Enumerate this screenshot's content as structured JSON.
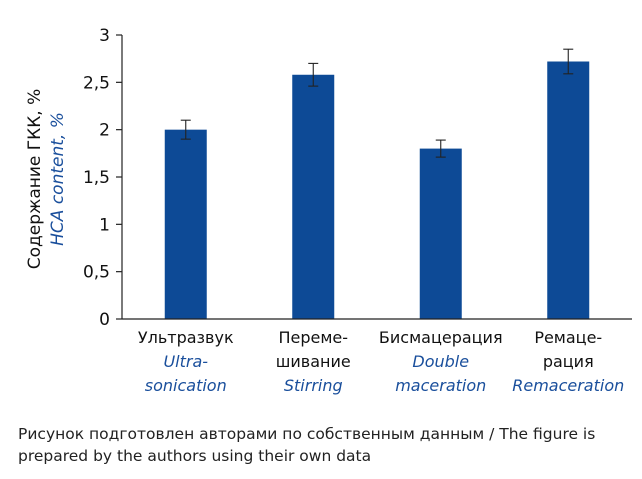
{
  "chart_data": {
    "type": "bar",
    "ylabel": "Содержание ГКК, %",
    "ylabel_en": "HCA content, %",
    "ylim": [
      0,
      3
    ],
    "yticks": [
      {
        "value": 0,
        "label": "0"
      },
      {
        "value": 0.5,
        "label": "0,5"
      },
      {
        "value": 1,
        "label": "1"
      },
      {
        "value": 1.5,
        "label": "1,5"
      },
      {
        "value": 2,
        "label": "2"
      },
      {
        "value": 2.5,
        "label": "2,5"
      },
      {
        "value": 3,
        "label": "3"
      }
    ],
    "categories": [
      {
        "ru": [
          "Ультразвук"
        ],
        "en": [
          "Ultra-",
          "sonication"
        ]
      },
      {
        "ru": [
          "Переме-",
          "шивание"
        ],
        "en": [
          "Stirring"
        ]
      },
      {
        "ru": [
          "Бисмацерация"
        ],
        "en": [
          "Double",
          "maceration"
        ]
      },
      {
        "ru": [
          "Ремаце-",
          "рация"
        ],
        "en": [
          "Remaceration"
        ]
      }
    ],
    "values": [
      2.0,
      2.58,
      1.8,
      2.72
    ],
    "errors": [
      0.1,
      0.12,
      0.09,
      0.13
    ],
    "bar_color": "#0d4a96",
    "grid": false,
    "legend": "none"
  },
  "caption": "Рисунок подготовлен авторами по собственным данным / The figure is prepared by the authors using their own data"
}
